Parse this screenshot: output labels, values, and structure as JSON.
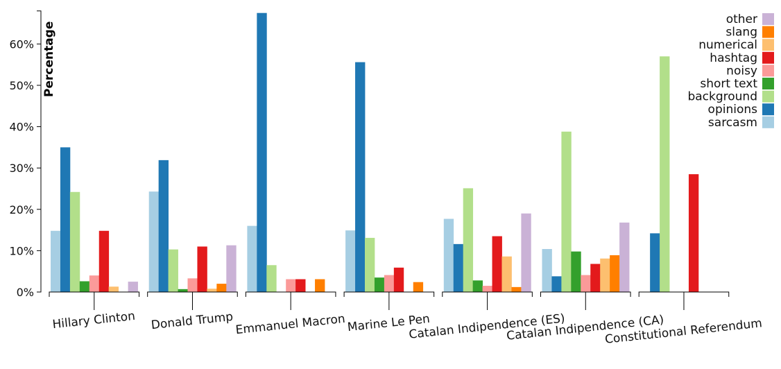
{
  "chart_data": {
    "type": "bar",
    "ylabel": "Percentage",
    "xlabel": "",
    "ylim": [
      0,
      68
    ],
    "yticks": [
      "0%",
      "10%",
      "20%",
      "30%",
      "40%",
      "50%",
      "60%"
    ],
    "legend_position": "top-right",
    "categories": [
      "Hillary Clinton",
      "Donald Trump",
      "Emmanuel Macron",
      "Marine Le Pen",
      "Catalan Indipendence (ES)",
      "Catalan Indipendence (CA)",
      "Constitutional Referendum"
    ],
    "series": [
      {
        "name": "sarcasm",
        "color": "#a6cee3",
        "values": [
          14.8,
          24.3,
          16.0,
          14.9,
          17.7,
          10.4,
          0
        ]
      },
      {
        "name": "opinions",
        "color": "#1f78b4",
        "values": [
          35.0,
          31.9,
          67.5,
          55.6,
          11.6,
          3.8,
          14.2
        ]
      },
      {
        "name": "background",
        "color": "#b2df8a",
        "values": [
          24.2,
          10.3,
          6.5,
          13.1,
          25.1,
          38.8,
          57.0
        ]
      },
      {
        "name": "short text",
        "color": "#33a02c",
        "values": [
          2.6,
          0.7,
          0,
          3.5,
          2.8,
          9.8,
          0
        ]
      },
      {
        "name": "noisy",
        "color": "#fb9a99",
        "values": [
          4.0,
          3.3,
          3.1,
          4.1,
          1.5,
          4.1,
          0
        ]
      },
      {
        "name": "hashtag",
        "color": "#e31a1c",
        "values": [
          14.8,
          11.0,
          3.1,
          5.9,
          13.5,
          6.8,
          28.5
        ]
      },
      {
        "name": "numerical",
        "color": "#fdbf6f",
        "values": [
          1.3,
          0.8,
          0,
          0,
          8.6,
          8.1,
          0
        ]
      },
      {
        "name": "slang",
        "color": "#ff7f00",
        "values": [
          0,
          2.0,
          3.1,
          2.4,
          1.2,
          8.9,
          0
        ]
      },
      {
        "name": "other",
        "color": "#cab2d6",
        "values": [
          2.5,
          11.3,
          0,
          0,
          19.0,
          16.8,
          0
        ]
      }
    ]
  }
}
